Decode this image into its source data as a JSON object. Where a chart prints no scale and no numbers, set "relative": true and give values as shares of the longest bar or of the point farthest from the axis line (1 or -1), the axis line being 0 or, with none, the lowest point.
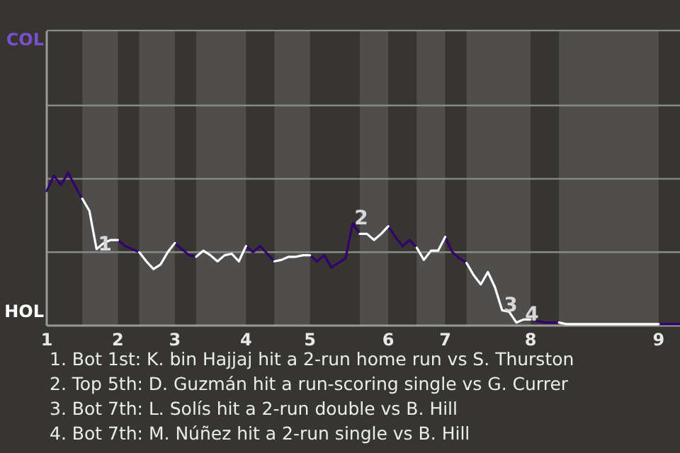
{
  "chart_data": {
    "type": "line",
    "relative": true,
    "marker": "none",
    "line_style": "solid",
    "ref_lines": [
      {
        "axis": "y",
        "value": 0.48,
        "color": "#8a8a88"
      },
      {
        "axis": "y",
        "value": 0.96,
        "color": "#8a8a88"
      },
      {
        "axis": "y",
        "value": 1.44,
        "color": "#8a8a88"
      },
      {
        "axis": "y",
        "value": 1.93,
        "color": "#8a8a88"
      }
    ],
    "categories": [
      "1",
      null,
      null,
      null,
      null,
      null,
      null,
      null,
      null,
      null,
      "2",
      null,
      null,
      null,
      null,
      null,
      null,
      null,
      "3",
      null,
      null,
      null,
      null,
      null,
      null,
      null,
      null,
      null,
      "4",
      null,
      null,
      null,
      null,
      null,
      null,
      null,
      null,
      "5",
      null,
      null,
      null,
      null,
      null,
      null,
      null,
      null,
      null,
      null,
      "6",
      null,
      null,
      null,
      null,
      null,
      null,
      null,
      "7",
      null,
      null,
      null,
      null,
      null,
      null,
      null,
      null,
      null,
      null,
      null,
      "8",
      null,
      null,
      null,
      null,
      null,
      null,
      null,
      null,
      null,
      null,
      null,
      null,
      null,
      null,
      null,
      null,
      null,
      "9",
      null,
      null,
      null
    ],
    "series": [
      {
        "color": "#33006f",
        "values": [
          0.88,
          0.98,
          0.92,
          1,
          0.91,
          0.83,
          null,
          null,
          null,
          null,
          0.56,
          0.52,
          0.5,
          0.48,
          null,
          null,
          null,
          null,
          0.54,
          0.5,
          0.46,
          0.45,
          null,
          null,
          null,
          null,
          null,
          null,
          0.52,
          0.48,
          0.52,
          0.47,
          0.42,
          null,
          null,
          null,
          null,
          0.46,
          0.42,
          0.46,
          0.38,
          0.41,
          0.44,
          0.67,
          0.6,
          null,
          null,
          null,
          0.65,
          0.58,
          0.52,
          0.56,
          0.51,
          null,
          null,
          null,
          0.58,
          0.48,
          0.44,
          0.41,
          null,
          null,
          null,
          null,
          null,
          null,
          null,
          null,
          0.04,
          0.03,
          0.02,
          0.02,
          0.02,
          null,
          null,
          null,
          null,
          null,
          null,
          null,
          null,
          null,
          null,
          null,
          null,
          null,
          0.01,
          0.01,
          0.01,
          0.01
        ]
      },
      {
        "color": "#ffffff",
        "values": [
          null,
          null,
          null,
          null,
          null,
          0.83,
          0.75,
          0.5,
          0.54,
          0.56,
          0.56,
          null,
          null,
          0.48,
          0.42,
          0.37,
          0.4,
          0.48,
          0.54,
          null,
          null,
          0.45,
          0.49,
          0.46,
          0.42,
          0.46,
          0.47,
          0.42,
          0.52,
          null,
          null,
          null,
          0.42,
          0.43,
          0.45,
          0.45,
          0.46,
          0.46,
          null,
          null,
          null,
          null,
          null,
          null,
          0.6,
          0.6,
          0.56,
          0.6,
          0.65,
          null,
          null,
          null,
          0.51,
          0.43,
          0.49,
          0.49,
          0.58,
          null,
          null,
          0.41,
          0.33,
          0.27,
          0.35,
          0.25,
          0.1,
          0.09,
          0.02,
          0.04,
          0.04,
          null,
          null,
          null,
          0.02,
          0.01,
          0.01,
          0.01,
          0.01,
          0.01,
          0.01,
          0.01,
          0.01,
          0.01,
          0.01,
          0.01,
          0.01,
          0.01,
          0.01,
          null,
          null,
          null
        ]
      }
    ],
    "annotations": [
      "COL",
      "HOL",
      {
        "text": "1",
        "y": 0.5
      },
      {
        "text": "2",
        "y": 0.67
      },
      {
        "text": "3",
        "y": 0.1
      },
      {
        "text": "4",
        "y": 0.04
      },
      "1. Bot 1st: K. bin Hajjaj hit a 2-run home run vs S. Thurston",
      "2. Top 5th: D. Guzmán hit a run-scoring single vs G. Currer",
      "3. Bot 7th: L. Solís hit a 2-run double vs B. Hill",
      "4. Bot 7th: M. Núñez hit a 2-run single vs B. Hill"
    ]
  }
}
